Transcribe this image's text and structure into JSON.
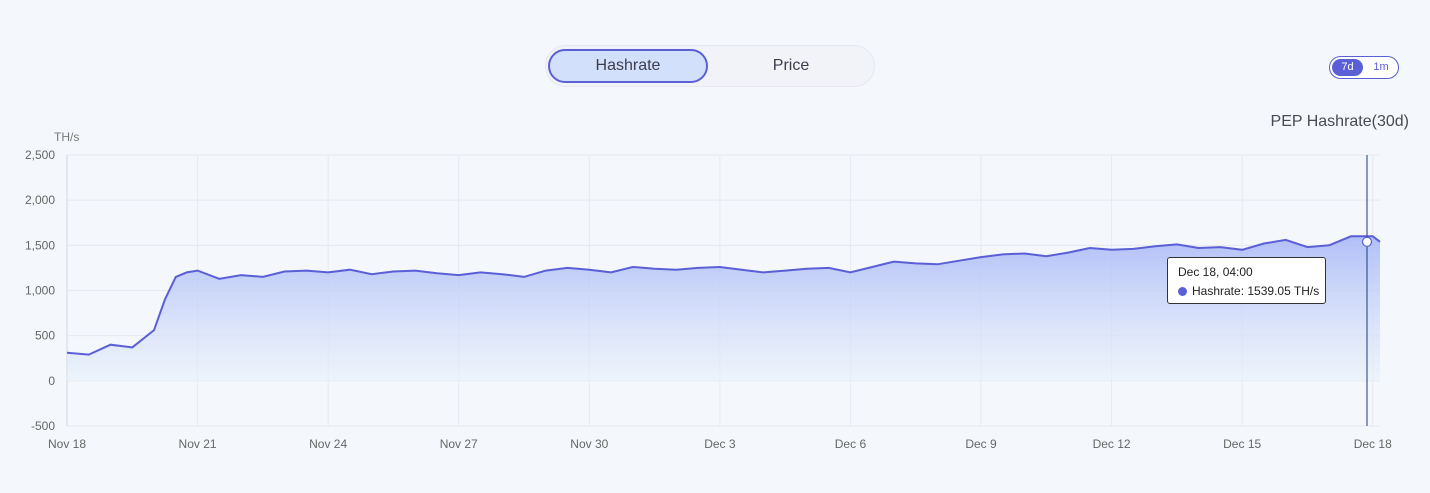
{
  "tabs": [
    {
      "label": "Hashrate",
      "active": true
    },
    {
      "label": "Price",
      "active": false
    }
  ],
  "range": {
    "options": [
      "7d",
      "1m"
    ],
    "selected": "7d"
  },
  "chart_title": "PEP Hashrate(30d)",
  "colors": {
    "accent": "#5a5fd6",
    "area_top": "#aab9f7",
    "area_bottom": "#e8f1fb",
    "cursor_line": "#1e3a7a"
  },
  "tooltip": {
    "date": "Dec 18, 04:00",
    "series": "Hashrate",
    "value": "1539.05 TH/s"
  },
  "chart_data": {
    "type": "area",
    "title": "PEP Hashrate(30d)",
    "ylabel": "TH/s",
    "xlabel": "",
    "ylim": [
      -500,
      2500
    ],
    "xlim": [
      "2023-11-18",
      "2023-12-18T04:00"
    ],
    "y_ticks": [
      "2,500",
      "2,000",
      "1,500",
      "1,000",
      "500",
      "0",
      "-500"
    ],
    "x_ticks": [
      "Nov 18",
      "Nov 21",
      "Nov 24",
      "Nov 27",
      "Nov 30",
      "Dec 3",
      "Dec 6",
      "Dec 9",
      "Dec 12",
      "Dec 15",
      "Dec 18"
    ],
    "grid": true,
    "series": [
      {
        "name": "Hashrate",
        "x": [
          "2023-11-18",
          "2023-11-18T12:00",
          "2023-11-19",
          "2023-11-19T12:00",
          "2023-11-20",
          "2023-11-20T06:00",
          "2023-11-20T12:00",
          "2023-11-20T18:00",
          "2023-11-21",
          "2023-11-21T12:00",
          "2023-11-22",
          "2023-11-22T12:00",
          "2023-11-23",
          "2023-11-23T12:00",
          "2023-11-24",
          "2023-11-24T12:00",
          "2023-11-25",
          "2023-11-25T12:00",
          "2023-11-26",
          "2023-11-26T12:00",
          "2023-11-27",
          "2023-11-27T12:00",
          "2023-11-28",
          "2023-11-28T12:00",
          "2023-11-29",
          "2023-11-29T12:00",
          "2023-11-30",
          "2023-11-30T12:00",
          "2023-12-01",
          "2023-12-01T12:00",
          "2023-12-02",
          "2023-12-02T12:00",
          "2023-12-03",
          "2023-12-03T12:00",
          "2023-12-04",
          "2023-12-04T12:00",
          "2023-12-05",
          "2023-12-05T12:00",
          "2023-12-06",
          "2023-12-06T12:00",
          "2023-12-07",
          "2023-12-07T12:00",
          "2023-12-08",
          "2023-12-08T12:00",
          "2023-12-09",
          "2023-12-09T12:00",
          "2023-12-10",
          "2023-12-10T12:00",
          "2023-12-11",
          "2023-12-11T12:00",
          "2023-12-12",
          "2023-12-12T12:00",
          "2023-12-13",
          "2023-12-13T12:00",
          "2023-12-14",
          "2023-12-14T12:00",
          "2023-12-15",
          "2023-12-15T12:00",
          "2023-12-16",
          "2023-12-16T12:00",
          "2023-12-17",
          "2023-12-17T12:00",
          "2023-12-18",
          "2023-12-18T04:00"
        ],
        "values": [
          310,
          290,
          400,
          370,
          560,
          900,
          1150,
          1200,
          1220,
          1130,
          1170,
          1150,
          1210,
          1220,
          1200,
          1230,
          1180,
          1210,
          1220,
          1190,
          1170,
          1200,
          1180,
          1150,
          1220,
          1250,
          1230,
          1200,
          1260,
          1240,
          1230,
          1250,
          1260,
          1230,
          1200,
          1220,
          1240,
          1250,
          1200,
          1260,
          1320,
          1300,
          1290,
          1330,
          1370,
          1400,
          1410,
          1380,
          1420,
          1470,
          1450,
          1460,
          1490,
          1510,
          1470,
          1480,
          1450,
          1520,
          1560,
          1480,
          1500,
          1600,
          1600,
          1539.05
        ]
      }
    ]
  }
}
